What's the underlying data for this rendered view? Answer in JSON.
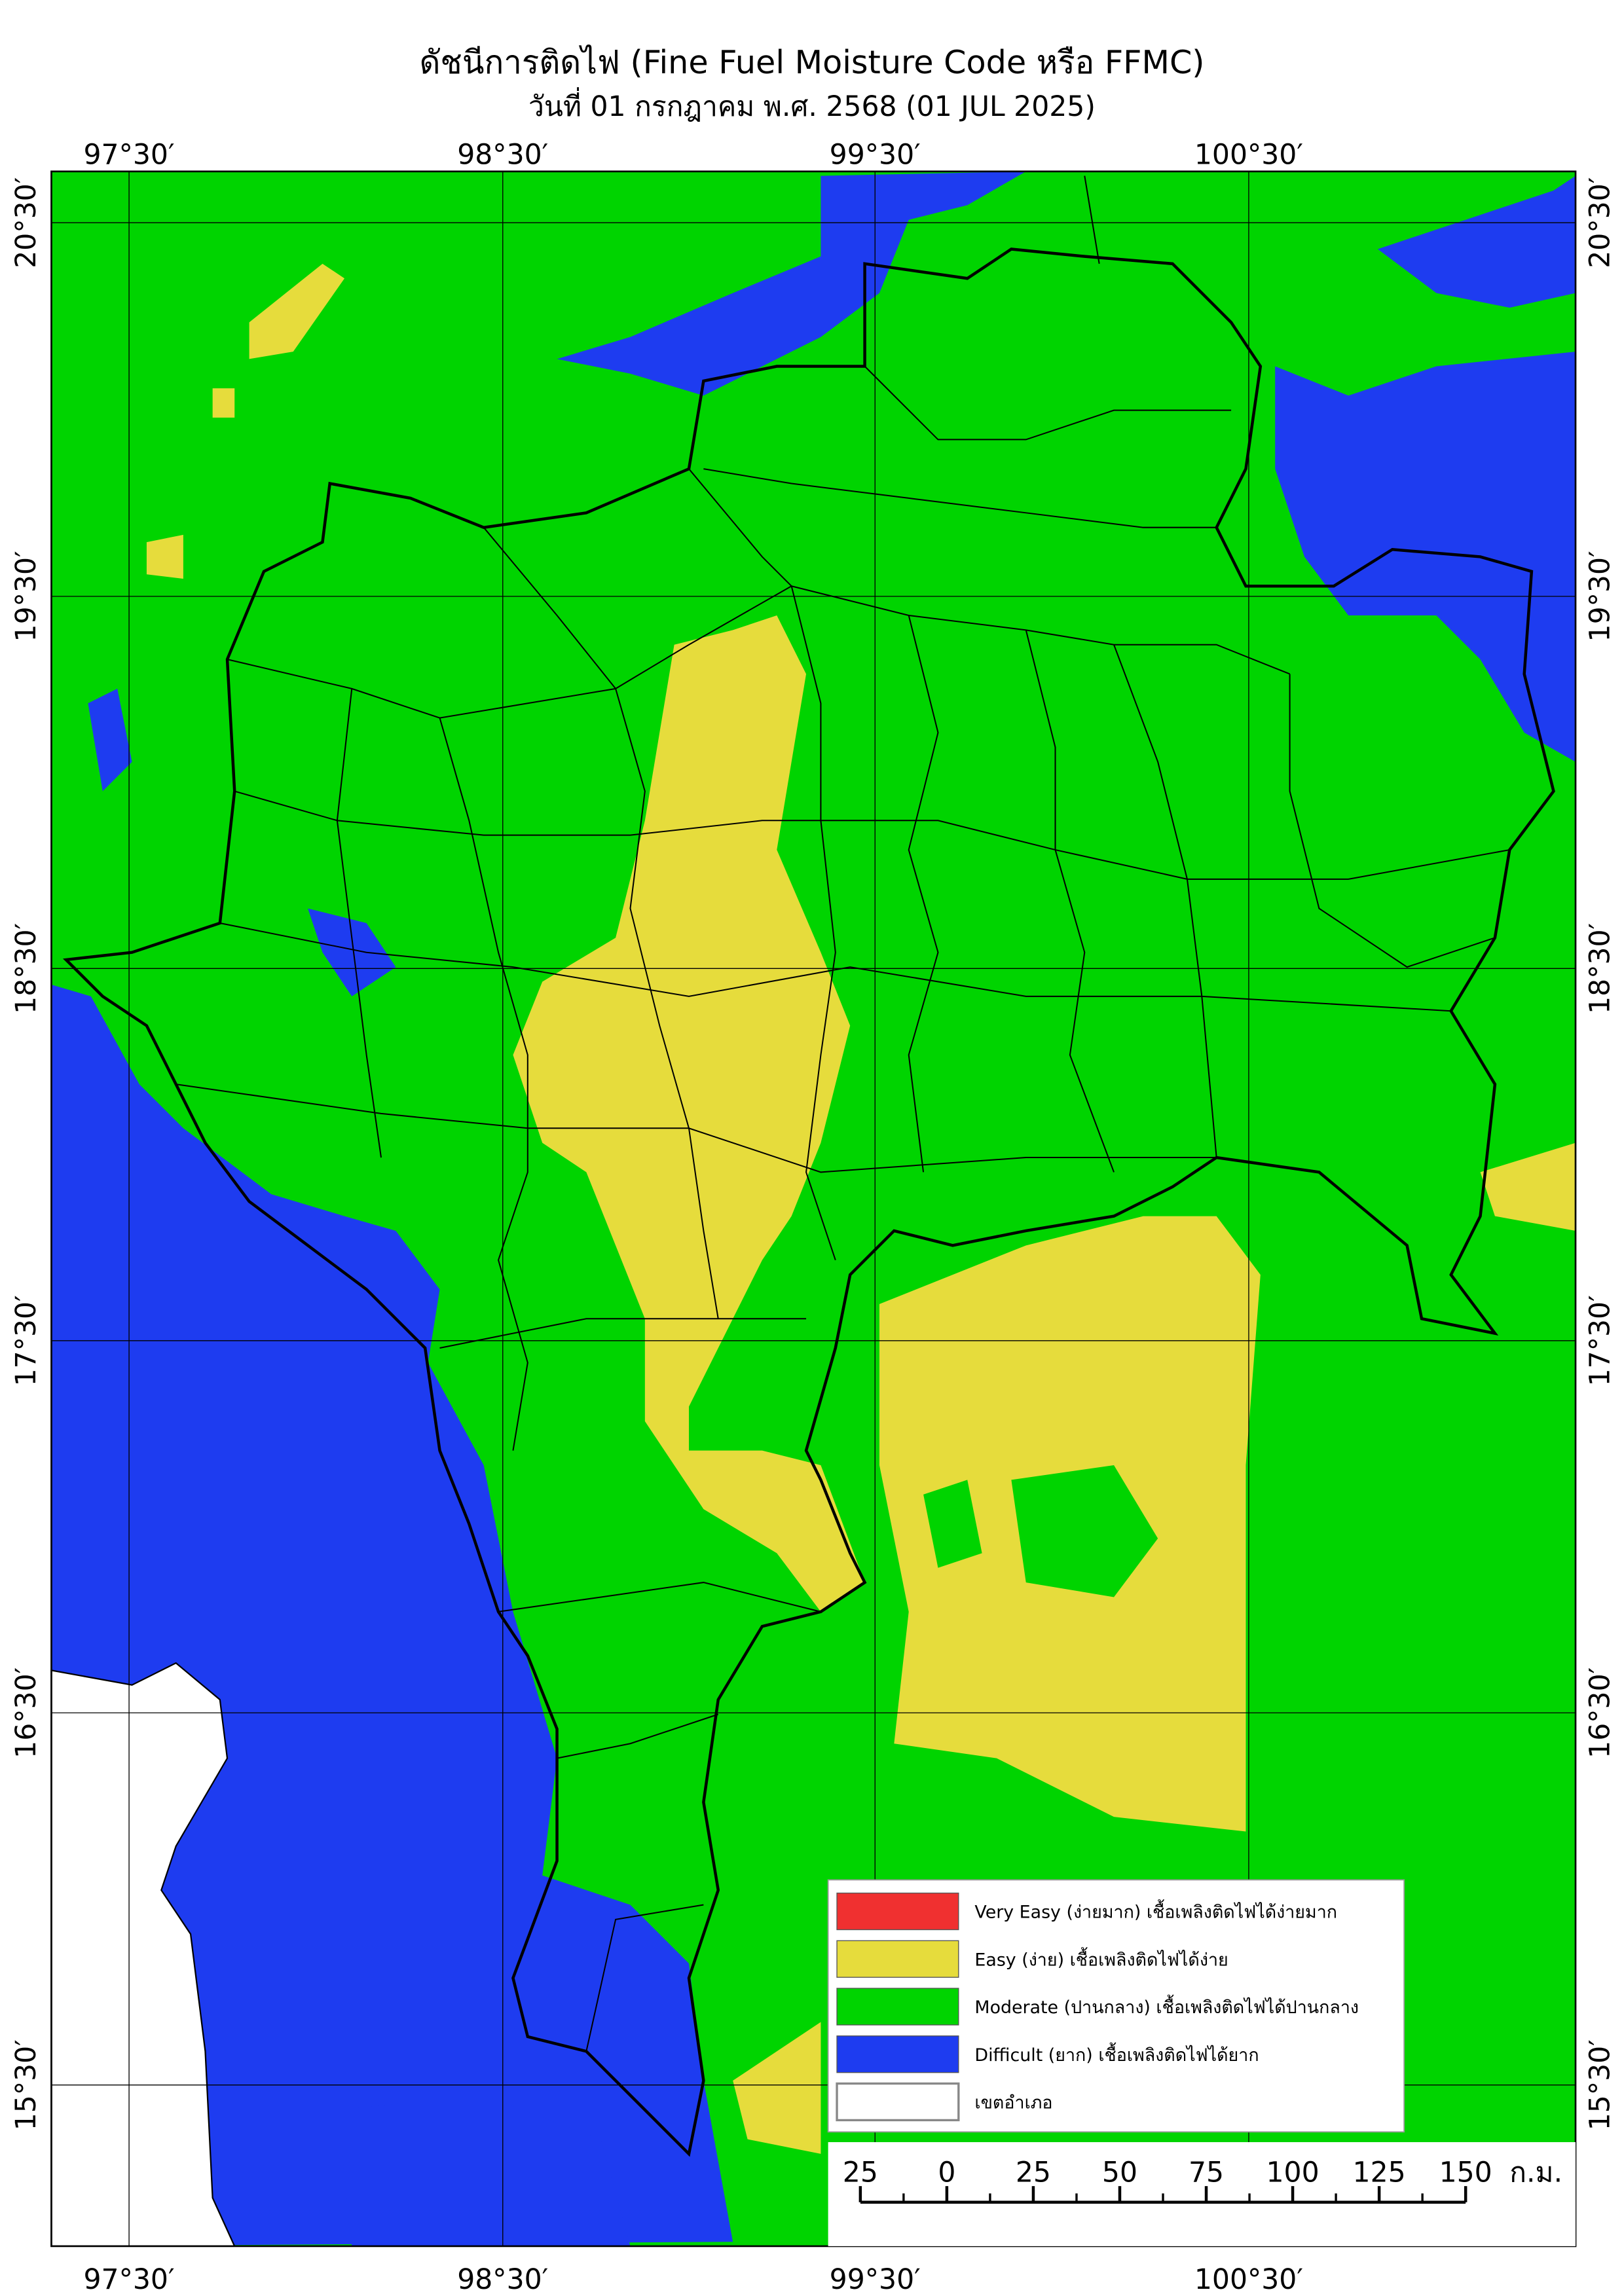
{
  "title": "ดัชนีการติดไฟ (Fine Fuel Moisture Code หรือ FFMC)",
  "subtitle": "วันที่ 01 กรกฎาคม พ.ศ. 2568 (01 JUL 2025)",
  "longitude_labels": [
    "97°30′",
    "98°30′",
    "99°30′",
    "100°30′"
  ],
  "latitude_labels": [
    "20°30′",
    "19°30′",
    "18°30′",
    "17°30′",
    "16°30′",
    "15°30′"
  ],
  "legend": [
    {
      "label": "Very Easy (ง่ายมาก) เชื้อเพลิงติดไฟได้ง่ายมาก",
      "color": "#f03030"
    },
    {
      "label": "Easy (ง่าย) เชื้อเพลิงติดไฟได้ง่าย",
      "color": "#e6dc3c"
    },
    {
      "label": "Moderate (ปานกลาง) เชื้อเพลิงติดไฟได้ปานกลาง",
      "color": "#00d400"
    },
    {
      "label": "Difficult (ยาก) เชื้อเพลิงติดไฟได้ยาก",
      "color": "#1e3cf0"
    },
    {
      "label": "เขตอำเภอ",
      "color": "#ffffff"
    }
  ],
  "scale_bar": {
    "labels": [
      "25",
      "0",
      "25",
      "50",
      "75",
      "100",
      "125",
      "150"
    ],
    "unit": "ก.ม."
  }
}
